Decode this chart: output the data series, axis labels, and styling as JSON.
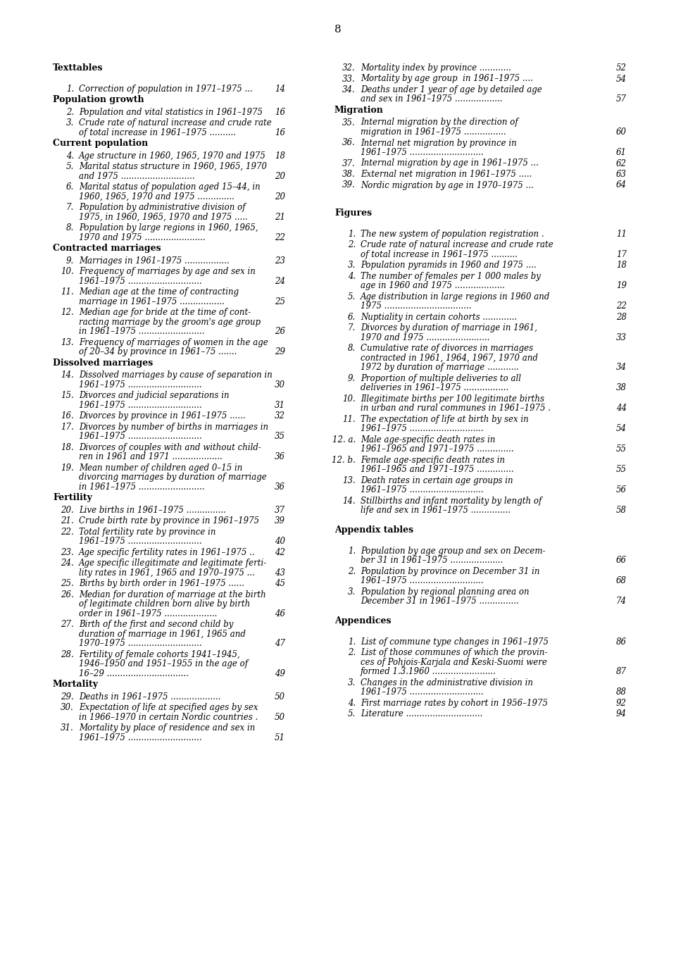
{
  "page_number": "8",
  "background_color": "#ffffff",
  "left_column": {
    "sections": [
      {
        "type": "header",
        "text": "Texttables"
      },
      {
        "type": "blank"
      },
      {
        "type": "entry",
        "number": "1.",
        "text": "Correction of population in 1971–1975 ...",
        "page": "14"
      },
      {
        "type": "header",
        "text": "Population growth"
      },
      {
        "type": "entry",
        "number": "2.",
        "text": "Population and vital statistics in 1961–1975",
        "page": "16"
      },
      {
        "type": "entry2",
        "number": "3.",
        "line1": "Crude rate of natural increase and crude rate",
        "line2": "of total increase in 1961–1975 ..........",
        "page": "16"
      },
      {
        "type": "header",
        "text": "Current population"
      },
      {
        "type": "entry",
        "number": "4.",
        "text": "Age structure in 1960, 1965, 1970 and 1975",
        "page": "18"
      },
      {
        "type": "entry2",
        "number": "5.",
        "line1": "Marital status structure in 1960, 1965, 1970",
        "line2": "and 1975 ............................",
        "page": "20"
      },
      {
        "type": "entry2",
        "number": "6.",
        "line1": "Marital status of population aged 15–44, in",
        "line2": "1960, 1965, 1970 and 1975 ..............",
        "page": "20"
      },
      {
        "type": "entry2",
        "number": "7.",
        "line1": "Population by administrative division of",
        "line2": "1975, in 1960, 1965, 1970 and 1975 .....",
        "page": "21"
      },
      {
        "type": "entry2",
        "number": "8.",
        "line1": "Population by large regions in 1960, 1965,",
        "line2": "1970 and 1975 .......................",
        "page": "22"
      },
      {
        "type": "header",
        "text": "Contracted marriages"
      },
      {
        "type": "entry",
        "number": "9.",
        "text": "Marriages in 1961–1975 .................",
        "page": "23"
      },
      {
        "type": "entry2",
        "number": "10.",
        "line1": "Frequency of marriages by age and sex in",
        "line2": "1961–1975 ............................",
        "page": "24"
      },
      {
        "type": "entry2",
        "number": "11.",
        "line1": "Median age at the time of contracting",
        "line2": "marriage in 1961–1975 .................",
        "page": "25"
      },
      {
        "type": "entry3",
        "number": "12.",
        "line1": "Median age for bride at the time of cont-",
        "line2": "racting marriage by the groom's age group",
        "line3": "in 1961–1975 .........................",
        "page": "26"
      },
      {
        "type": "entry2",
        "number": "13.",
        "line1": "Frequency of marriages of women in the age",
        "line2": "of 20–34 by province in 1961–75 .......",
        "page": "29"
      },
      {
        "type": "header",
        "text": "Dissolved marriages"
      },
      {
        "type": "entry2",
        "number": "14.",
        "line1": "Dissolved marriages by cause of separation in",
        "line2": "1961–1975 ............................",
        "page": "30"
      },
      {
        "type": "entry2",
        "number": "15.",
        "line1": "Divorces and judicial separations in",
        "line2": "1961–1975 ............................",
        "page": "31"
      },
      {
        "type": "entry",
        "number": "16.",
        "text": "Divorces by province in 1961–1975 ......",
        "page": "32"
      },
      {
        "type": "entry2",
        "number": "17.",
        "line1": "Divorces by number of births in marriages in",
        "line2": "1961–1975 ............................",
        "page": "35"
      },
      {
        "type": "entry2",
        "number": "18.",
        "line1": "Divorces of couples with and without child-",
        "line2": "ren in 1961 and 1971 ...................",
        "page": "36"
      },
      {
        "type": "entry3",
        "number": "19.",
        "line1": "Mean number of children aged 0–15 in",
        "line2": "divorcing marriages by duration of marriage",
        "line3": "in 1961–1975 .........................",
        "page": "36"
      },
      {
        "type": "header",
        "text": "Fertility"
      },
      {
        "type": "entry",
        "number": "20.",
        "text": "Live births in 1961–1975 ...............",
        "page": "37"
      },
      {
        "type": "entry",
        "number": "21.",
        "text": "Crude birth rate by province in 1961–1975",
        "page": "39"
      },
      {
        "type": "entry2",
        "number": "22.",
        "line1": "Total fertility rate by province in",
        "line2": "1961–1975 ............................",
        "page": "40"
      },
      {
        "type": "entry",
        "number": "23.",
        "text": "Age specific fertility rates in 1961–1975 ..",
        "page": "42"
      },
      {
        "type": "entry2",
        "number": "24.",
        "line1": "Age specific illegitimate and legitimate ferti-",
        "line2": "lity rates in 1961, 1965 and 1970–1975 ...",
        "page": "43"
      },
      {
        "type": "entry",
        "number": "25.",
        "text": "Births by birth order in 1961–1975 ......",
        "page": "45"
      },
      {
        "type": "entry3",
        "number": "26.",
        "line1": "Median for duration of marriage at the birth",
        "line2": "of legitimate children born alive by birth",
        "line3": "order in 1961–1975 ....................",
        "page": "46"
      },
      {
        "type": "entry3",
        "number": "27.",
        "line1": "Birth of the first and second child by",
        "line2": "duration of marriage in 1961, 1965 and",
        "line3": "1970–1975 ............................",
        "page": "47"
      },
      {
        "type": "entry3",
        "number": "28.",
        "line1": "Fertility of female cohorts 1941–1945,",
        "line2": "1946–1950 and 1951–1955 in the age of",
        "line3": "16–29 ...............................",
        "page": "49"
      },
      {
        "type": "header",
        "text": "Mortality"
      },
      {
        "type": "entry",
        "number": "29.",
        "text": "Deaths in 1961–1975 ...................",
        "page": "50"
      },
      {
        "type": "entry2",
        "number": "30.",
        "line1": "Expectation of life at specified ages by sex",
        "line2": "in 1966–1970 in certain Nordic countries .",
        "page": "50"
      },
      {
        "type": "entry2",
        "number": "31.",
        "line1": "Mortality by place of residence and sex in",
        "line2": "1961–1975 ............................",
        "page": "51"
      }
    ]
  },
  "right_column": {
    "sections": [
      {
        "type": "entry",
        "number": "32.",
        "text": "Mortality index by province ............",
        "page": "52"
      },
      {
        "type": "entry",
        "number": "33.",
        "text": "Mortality by age group  in 1961–1975 ....",
        "page": "54"
      },
      {
        "type": "entry2",
        "number": "34.",
        "line1": "Deaths under 1 year of age by detailed age",
        "line2": "and sex in 1961–1975 ..................",
        "page": "57"
      },
      {
        "type": "header",
        "text": "Migration"
      },
      {
        "type": "entry2",
        "number": "35.",
        "line1": "Internal migration by the direction of",
        "line2": "migration in 1961–1975 ................",
        "page": "60"
      },
      {
        "type": "entry2",
        "number": "36.",
        "line1": "Internal net migration by province in",
        "line2": "1961–1975 ............................",
        "page": "61"
      },
      {
        "type": "entry",
        "number": "37.",
        "text": "Internal migration by age in 1961–1975 ...",
        "page": "62"
      },
      {
        "type": "entry",
        "number": "38.",
        "text": "External net migration in 1961–1975 .....",
        "page": "63"
      },
      {
        "type": "entry",
        "number": "39.",
        "text": "Nordic migration by age in 1970–1975 ...",
        "page": "64"
      },
      {
        "type": "blank"
      },
      {
        "type": "blank"
      },
      {
        "type": "header",
        "text": "Figures"
      },
      {
        "type": "blank"
      },
      {
        "type": "entry",
        "number": "1.",
        "text": "The new system of population registration .",
        "page": "11"
      },
      {
        "type": "entry2",
        "number": "2.",
        "line1": "Crude rate of natural increase and crude rate",
        "line2": "of total increase in 1961–1975 ..........",
        "page": "17"
      },
      {
        "type": "entry",
        "number": "3.",
        "text": "Population pyramids in 1960 and 1975 ....",
        "page": "18"
      },
      {
        "type": "entry2",
        "number": "4.",
        "line1": "The number of females per 1 000 males by",
        "line2": "age in 1960 and 1975 ...................",
        "page": "19"
      },
      {
        "type": "entry2",
        "number": "5.",
        "line1": "Age distribution in large regions in 1960 and",
        "line2": "1975 .................................",
        "page": "22"
      },
      {
        "type": "entry",
        "number": "6.",
        "text": "Nuptiality in certain cohorts .............",
        "page": "28"
      },
      {
        "type": "entry2",
        "number": "7.",
        "line1": "Divorces by duration of marriage in 1961,",
        "line2": "1970 and 1975 ........................",
        "page": "33"
      },
      {
        "type": "entry3",
        "number": "8.",
        "line1": "Cumulative rate of divorces in marriages",
        "line2": "contracted in 1961, 1964, 1967, 1970 and",
        "line3": "1972 by duration of marriage ............",
        "page": "34"
      },
      {
        "type": "entry2",
        "number": "9.",
        "line1": "Proportion of multiple deliveries to all",
        "line2": "deliveries in 1961–1975 .................",
        "page": "38"
      },
      {
        "type": "entry2",
        "number": "10.",
        "line1": "Illegitimate births per 100 legitimate births",
        "line2": "in urban and rural communes in 1961–1975 .",
        "page": "44"
      },
      {
        "type": "entry2",
        "number": "11.",
        "line1": "The expectation of life at birth by sex in",
        "line2": "1961–1975 ............................",
        "page": "54"
      },
      {
        "type": "entry2",
        "number": "12. a.",
        "line1": "Male age-specific death rates in",
        "line2": "1961–1965 and 1971–1975 ..............",
        "page": "55"
      },
      {
        "type": "entry2",
        "number": "12. b.",
        "line1": "Female age-specific death rates in",
        "line2": "1961–1965 and 1971–1975 ..............",
        "page": "55"
      },
      {
        "type": "entry2",
        "number": "13.",
        "line1": "Death rates in certain age groups in",
        "line2": "1961–1975 ............................",
        "page": "56"
      },
      {
        "type": "entry2",
        "number": "14.",
        "line1": "Stillbirths and infant mortality by length of",
        "line2": "life and sex in 1961–1975 ...............",
        "page": "58"
      },
      {
        "type": "blank"
      },
      {
        "type": "header",
        "text": "Appendix tables"
      },
      {
        "type": "blank"
      },
      {
        "type": "entry2",
        "number": "1.",
        "line1": "Population by age group and sex on Decem-",
        "line2": "ber 31 in 1961–1975 ....................",
        "page": "66"
      },
      {
        "type": "entry2",
        "number": "2.",
        "line1": "Population by province on December 31 in",
        "line2": "1961–1975 ............................",
        "page": "68"
      },
      {
        "type": "entry2",
        "number": "3.",
        "line1": "Population by regional planning area on",
        "line2": "December 31 in 1961–1975 ...............",
        "page": "74"
      },
      {
        "type": "blank"
      },
      {
        "type": "header",
        "text": "Appendices"
      },
      {
        "type": "blank"
      },
      {
        "type": "entry",
        "number": "1.",
        "text": "List of commune type changes in 1961–1975",
        "page": "86"
      },
      {
        "type": "entry3",
        "number": "2.",
        "line1": "List of those communes of which the provin-",
        "line2": "ces of Pohjois-Karjala and Keski-Suomi were",
        "line3": "formed 1.3.1960 ........................",
        "page": "87"
      },
      {
        "type": "entry2",
        "number": "3.",
        "line1": "Changes in the administrative division in",
        "line2": "1961–1975 ............................",
        "page": "88"
      },
      {
        "type": "entry",
        "number": "4.",
        "text": "First marriage rates by cohort in 1956–1975",
        "page": "92"
      },
      {
        "type": "entry",
        "number": "5.",
        "text": "Literature .............................",
        "page": "94"
      }
    ]
  }
}
